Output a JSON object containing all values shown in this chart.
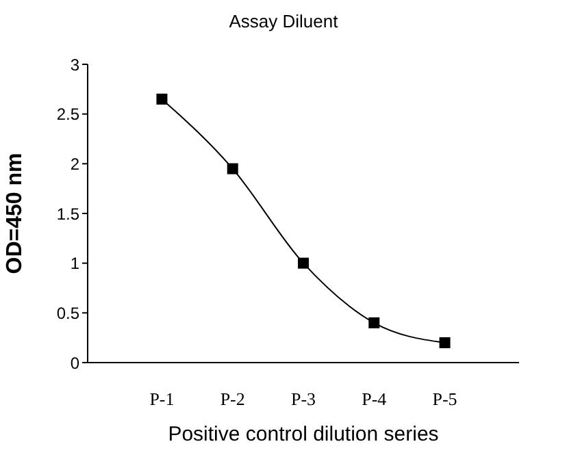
{
  "chart_data": {
    "type": "line",
    "title": "Assay Diluent",
    "xlabel": "Positive control dilution series",
    "ylabel": "OD=450 nm",
    "categories": [
      "P-1",
      "P-2",
      "P-3",
      "P-4",
      "P-5"
    ],
    "series": [
      {
        "color": "#000000",
        "values": [
          2.65,
          1.95,
          1.0,
          0.4,
          0.2
        ]
      }
    ],
    "ylim": [
      0,
      3
    ],
    "yticks": [
      0,
      0.5,
      1,
      1.5,
      2,
      2.5,
      3
    ],
    "marker": "square",
    "line_style": "solid",
    "grid": false,
    "legend": false
  }
}
